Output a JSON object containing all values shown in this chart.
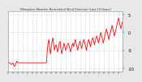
{
  "title": "Milwaukee Weather Normalized Wind Direction (Last 24 Hours)",
  "background_color": "#e8e8e8",
  "plot_bg_color": "#ffffff",
  "line_color": "#ff0000",
  "line_width": 0.6,
  "grid_color": "#aaaaaa",
  "grid_style": "dotted",
  "ylim": [
    -11,
    6
  ],
  "yticks": [
    -10,
    -5,
    0,
    5
  ],
  "yticklabels": [
    "-10",
    "-5",
    "0",
    "5"
  ],
  "num_points": 144,
  "x_values": [
    0,
    1,
    2,
    3,
    4,
    5,
    6,
    7,
    8,
    9,
    10,
    11,
    12,
    13,
    14,
    15,
    16,
    17,
    18,
    19,
    20,
    21,
    22,
    23,
    24,
    25,
    26,
    27,
    28,
    29,
    30,
    31,
    32,
    33,
    34,
    35,
    36,
    37,
    38,
    39,
    40,
    41,
    42,
    43,
    44,
    45,
    46,
    47,
    48,
    49,
    50,
    51,
    52,
    53,
    54,
    55,
    56,
    57,
    58,
    59,
    60,
    61,
    62,
    63,
    64,
    65,
    66,
    67,
    68,
    69,
    70,
    71,
    72,
    73,
    74,
    75,
    76,
    77,
    78,
    79,
    80,
    81,
    82,
    83,
    84,
    85,
    86,
    87,
    88,
    89,
    90,
    91,
    92,
    93,
    94,
    95,
    96,
    97,
    98,
    99,
    100,
    101,
    102,
    103,
    104,
    105,
    106,
    107,
    108,
    109,
    110,
    111,
    112,
    113,
    114,
    115,
    116,
    117,
    118,
    119,
    120,
    121,
    122,
    123,
    124,
    125,
    126,
    127,
    128,
    129,
    130,
    131,
    132,
    133,
    134,
    135,
    136,
    137,
    138,
    139,
    140,
    141,
    142,
    143
  ],
  "y_values": [
    -8.5,
    -8.5,
    -8.5,
    -8.8,
    -9.0,
    -8.8,
    -8.5,
    -9.2,
    -9.5,
    -9.0,
    -8.5,
    -8.0,
    -8.5,
    -8.5,
    -8.5,
    -8.5,
    -8.5,
    -8.5,
    -8.5,
    -8.5,
    -8.5,
    -8.5,
    -8.5,
    -8.5,
    -8.5,
    -8.5,
    -8.5,
    -8.5,
    -8.5,
    -8.5,
    -8.5,
    -8.5,
    -8.5,
    -8.5,
    -8.5,
    -8.5,
    -8.5,
    -8.5,
    -8.5,
    -8.5,
    -8.5,
    -8.5,
    -8.5,
    -8.5,
    -8.5,
    -8.5,
    -8.5,
    -8.5,
    -8.5,
    -5.0,
    -3.0,
    -2.0,
    -4.5,
    -6.0,
    -4.0,
    -2.5,
    -1.5,
    -3.5,
    -5.0,
    -4.0,
    -3.5,
    -4.5,
    -5.5,
    -4.0,
    -3.0,
    -2.5,
    -4.5,
    -6.0,
    -5.0,
    -4.0,
    -3.0,
    -4.0,
    -5.0,
    -4.5,
    -3.5,
    -3.0,
    -3.5,
    -4.5,
    -5.5,
    -4.5,
    -3.5,
    -3.0,
    -4.0,
    -3.0,
    -2.0,
    -3.0,
    -4.0,
    -5.0,
    -4.0,
    -3.0,
    -2.5,
    -3.5,
    -4.5,
    -3.5,
    -2.5,
    -2.0,
    -3.0,
    -4.0,
    -5.0,
    -3.5,
    -2.5,
    -2.0,
    -3.0,
    -4.0,
    -3.0,
    -2.0,
    -1.5,
    -2.5,
    -3.5,
    -2.5,
    -1.5,
    -1.0,
    -2.0,
    -3.0,
    -2.0,
    -1.0,
    0.0,
    -1.0,
    -2.0,
    -3.0,
    -2.0,
    -1.0,
    0.0,
    1.0,
    0.0,
    -1.0,
    -2.0,
    -1.0,
    0.0,
    1.0,
    2.0,
    1.0,
    0.0,
    -1.0,
    0.0,
    1.0,
    2.0,
    3.0,
    4.0,
    3.0,
    2.0,
    1.0,
    2.0,
    3.0
  ]
}
